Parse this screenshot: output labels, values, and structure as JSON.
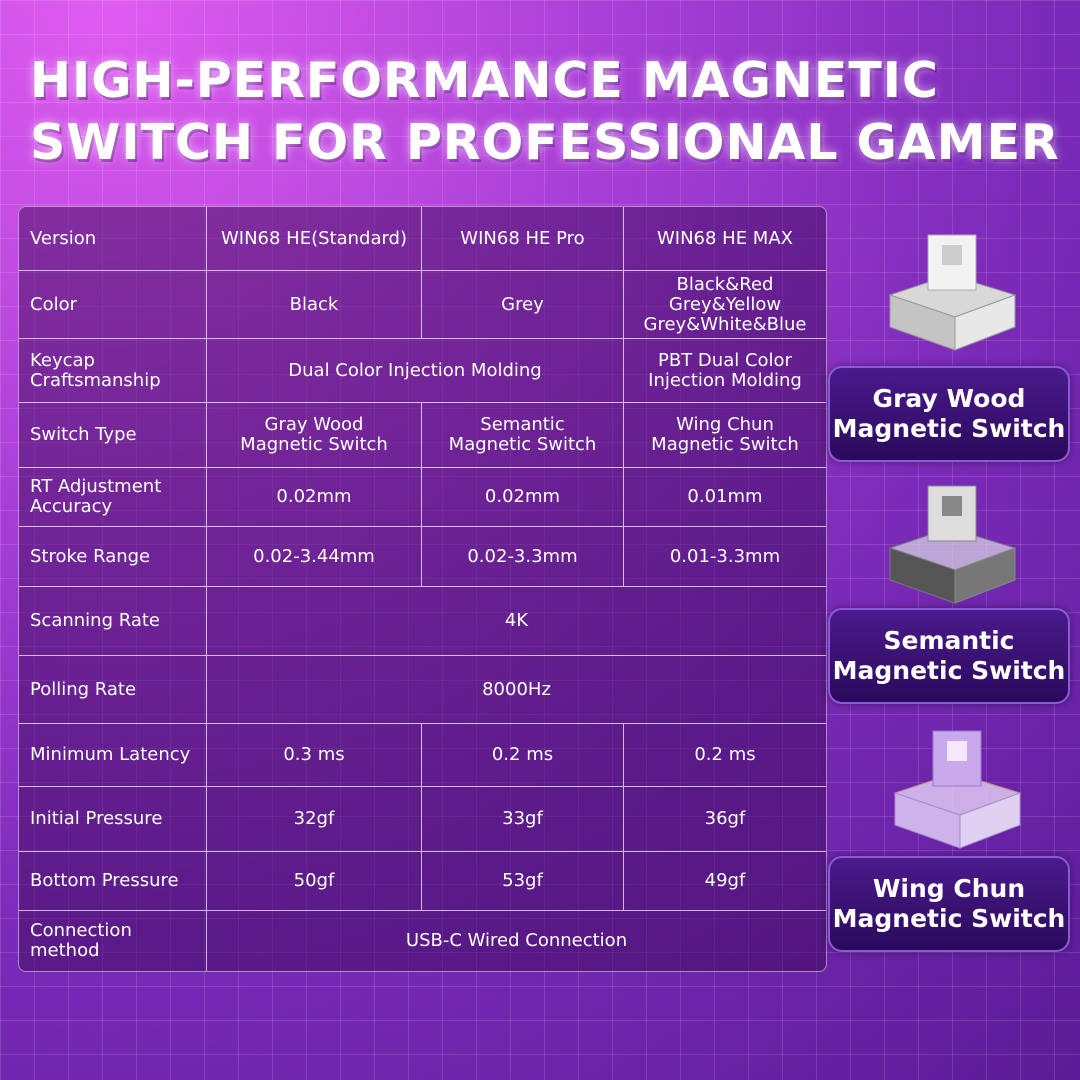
{
  "header": {
    "title_lines": [
      "HIGH-PERFORMANCE MAGNETIC",
      "SWITCH FOR PROFESSIONAL GAMER"
    ]
  },
  "table": {
    "rows": [
      {
        "label": "Version",
        "cells": [
          "WIN68 HE(Standard)",
          "WIN68 HE Pro",
          "WIN68 HE MAX"
        ]
      },
      {
        "label": "Color",
        "cells": [
          "Black",
          "Grey",
          "Black&Red\nGrey&Yellow\nGrey&White&Blue"
        ]
      },
      {
        "label": "Keycap\nCraftsmanship",
        "cells": [
          "Dual Color Injection Molding",
          "PBT Dual Color\nInjection Molding"
        ]
      },
      {
        "label": "Switch Type",
        "cells": [
          "Gray Wood\nMagnetic Switch",
          "Semantic\nMagnetic Switch",
          "Wing Chun\nMagnetic Switch"
        ]
      },
      {
        "label": "RT Adjustment\nAccuracy",
        "cells": [
          "0.02mm",
          "0.02mm",
          "0.01mm"
        ]
      },
      {
        "label": "Stroke Range",
        "cells": [
          "0.02-3.44mm",
          "0.02-3.3mm",
          "0.01-3.3mm"
        ]
      },
      {
        "label": "Scanning Rate",
        "cells": [
          "4K"
        ]
      },
      {
        "label": "Polling Rate",
        "cells": [
          "8000Hz"
        ]
      },
      {
        "label": "Minimum Latency",
        "cells": [
          "0.3 ms",
          "0.2 ms",
          "0.2 ms"
        ]
      },
      {
        "label": "Initial Pressure",
        "cells": [
          "32gf",
          "33gf",
          "36gf"
        ]
      },
      {
        "label": "Bottom Pressure",
        "cells": [
          "50gf",
          "53gf",
          "49gf"
        ]
      },
      {
        "label": "Connection\nmethod",
        "cells": [
          "USB-C Wired Connection"
        ]
      }
    ]
  },
  "switches": [
    {
      "label": "Gray Wood\nMagnetic Switch"
    },
    {
      "label": "Semantic\nMagnetic Switch"
    },
    {
      "label": "Wing Chun\nMagnetic Switch"
    }
  ]
}
